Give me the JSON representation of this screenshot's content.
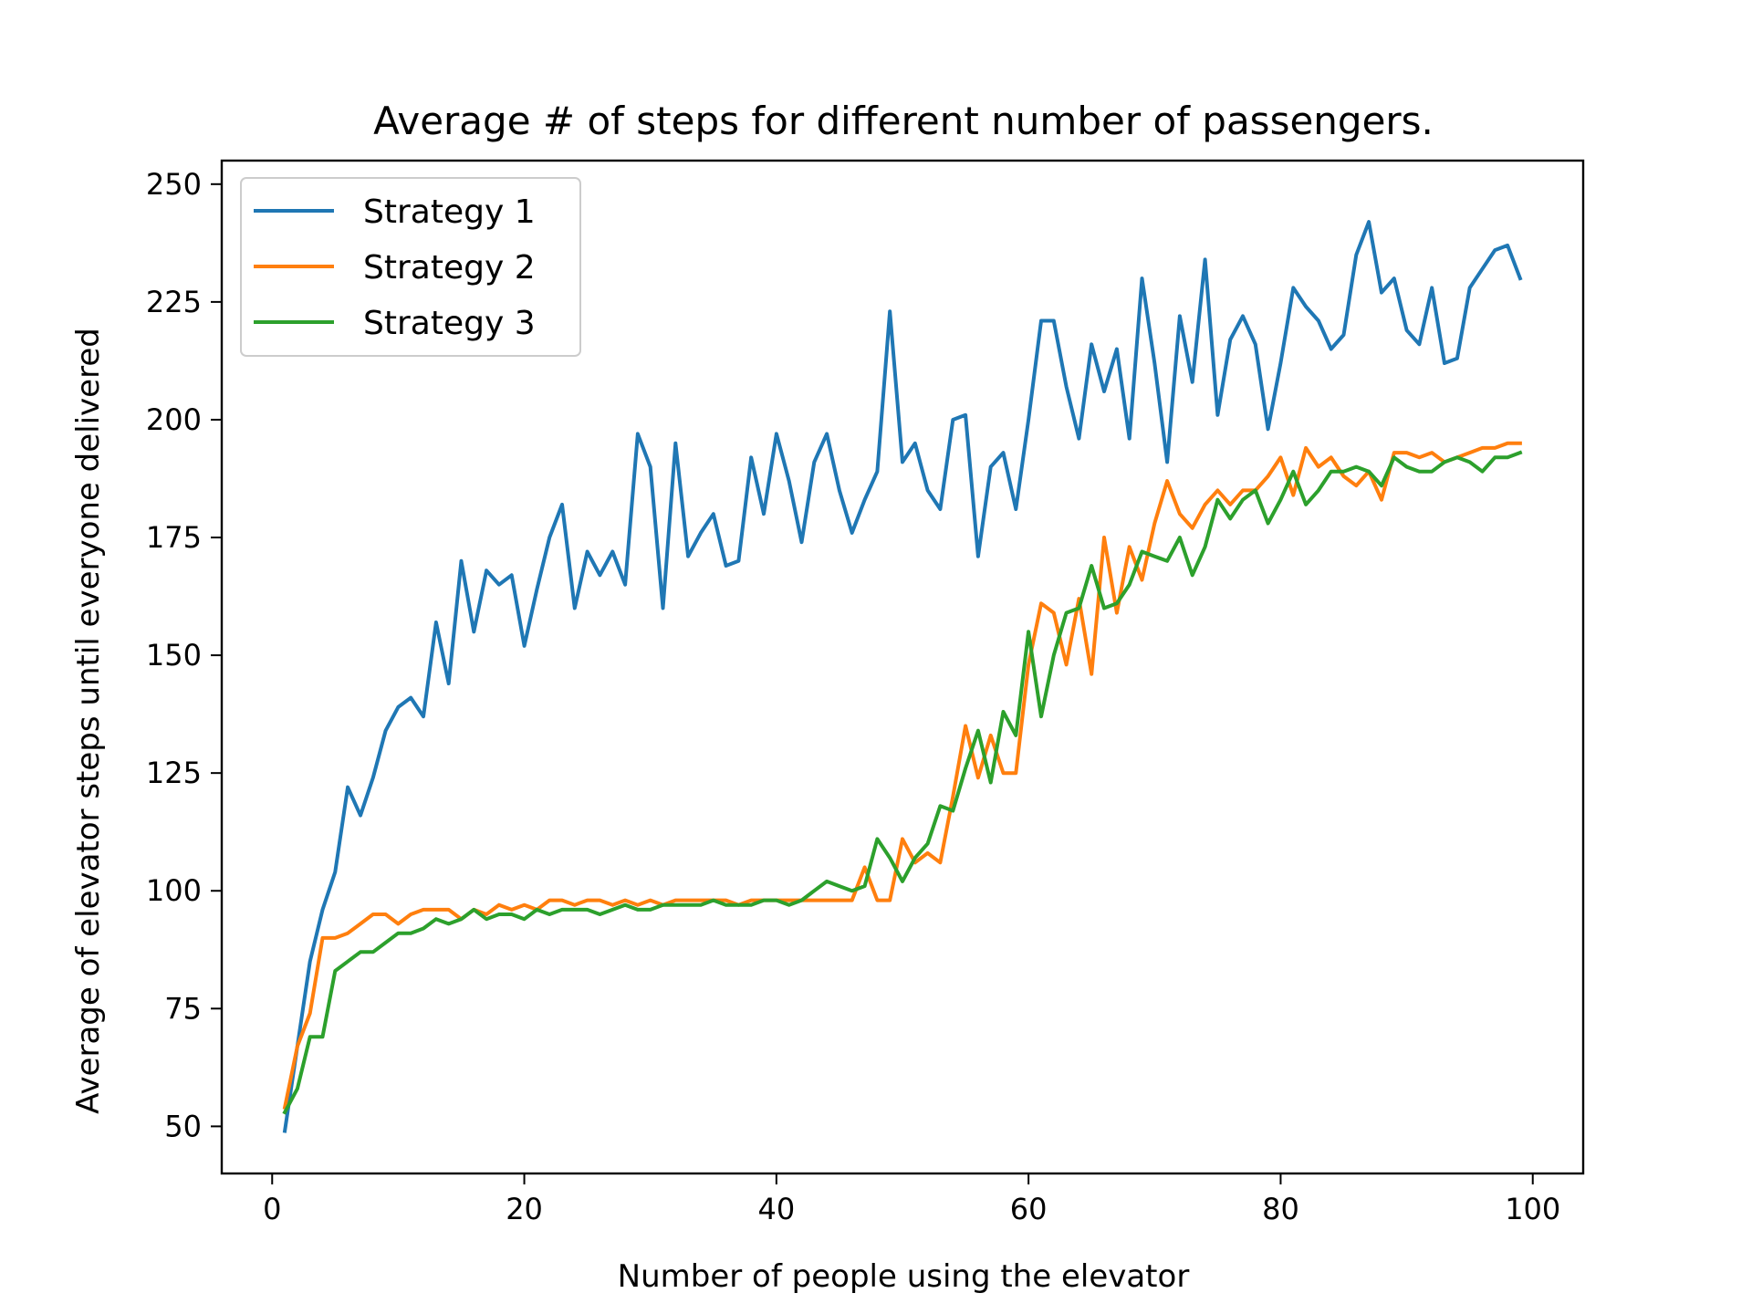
{
  "chart_data": {
    "type": "line",
    "title": "Average # of steps for different number of passengers.",
    "xlabel": "Number of people using the elevator",
    "ylabel": "Average of elevator steps until everyone delivered",
    "xlim": [
      -4,
      104
    ],
    "ylim": [
      40,
      255
    ],
    "xticks": [
      0,
      20,
      40,
      60,
      80,
      100
    ],
    "yticks": [
      50,
      75,
      100,
      125,
      150,
      175,
      200,
      225,
      250
    ],
    "grid": false,
    "legend": "top-left",
    "x": [
      1,
      2,
      3,
      4,
      5,
      6,
      7,
      8,
      9,
      10,
      11,
      12,
      13,
      14,
      15,
      16,
      17,
      18,
      19,
      20,
      21,
      22,
      23,
      24,
      25,
      26,
      27,
      28,
      29,
      30,
      31,
      32,
      33,
      34,
      35,
      36,
      37,
      38,
      39,
      40,
      41,
      42,
      43,
      44,
      45,
      46,
      47,
      48,
      49,
      50,
      51,
      52,
      53,
      54,
      55,
      56,
      57,
      58,
      59,
      60,
      61,
      62,
      63,
      64,
      65,
      66,
      67,
      68,
      69,
      70,
      71,
      72,
      73,
      74,
      75,
      76,
      77,
      78,
      79,
      80,
      81,
      82,
      83,
      84,
      85,
      86,
      87,
      88,
      89,
      90,
      91,
      92,
      93,
      94,
      95,
      96,
      97,
      98,
      99
    ],
    "series": [
      {
        "name": "Strategy 1",
        "color": "#1f77b4",
        "values": [
          49,
          67,
          85,
          96,
          104,
          122,
          116,
          124,
          134,
          139,
          141,
          137,
          157,
          144,
          170,
          155,
          168,
          165,
          167,
          152,
          164,
          175,
          182,
          160,
          172,
          167,
          172,
          165,
          197,
          190,
          160,
          195,
          171,
          176,
          180,
          169,
          170,
          192,
          180,
          197,
          187,
          174,
          191,
          197,
          185,
          176,
          183,
          189,
          223,
          191,
          195,
          185,
          181,
          200,
          201,
          171,
          190,
          193,
          181,
          200,
          221,
          221,
          207,
          196,
          216,
          206,
          215,
          196,
          230,
          212,
          191,
          222,
          208,
          234,
          201,
          217,
          222,
          216,
          198,
          212,
          228,
          224,
          221,
          215,
          218,
          235,
          242,
          227,
          230,
          219,
          216,
          228,
          212,
          213,
          228,
          232,
          236,
          237,
          230
        ]
      },
      {
        "name": "Strategy 2",
        "color": "#ff7f0e",
        "values": [
          54,
          67,
          74,
          90,
          90,
          91,
          93,
          95,
          95,
          93,
          95,
          96,
          96,
          96,
          94,
          96,
          95,
          97,
          96,
          97,
          96,
          98,
          98,
          97,
          98,
          98,
          97,
          98,
          97,
          98,
          97,
          98,
          98,
          98,
          98,
          98,
          97,
          98,
          98,
          98,
          98,
          98,
          98,
          98,
          98,
          98,
          105,
          98,
          98,
          111,
          106,
          108,
          106,
          120,
          135,
          124,
          133,
          125,
          125,
          148,
          161,
          159,
          148,
          162,
          146,
          175,
          159,
          173,
          166,
          178,
          187,
          180,
          177,
          182,
          185,
          182,
          185,
          185,
          188,
          192,
          184,
          194,
          190,
          192,
          188,
          186,
          189,
          183,
          193,
          193,
          192,
          193,
          191,
          192,
          193,
          194,
          194,
          195,
          195
        ]
      },
      {
        "name": "Strategy 3",
        "color": "#2ca02c",
        "values": [
          53,
          58,
          69,
          69,
          83,
          85,
          87,
          87,
          89,
          91,
          91,
          92,
          94,
          93,
          94,
          96,
          94,
          95,
          95,
          94,
          96,
          95,
          96,
          96,
          96,
          95,
          96,
          97,
          96,
          96,
          97,
          97,
          97,
          97,
          98,
          97,
          97,
          97,
          98,
          98,
          97,
          98,
          100,
          102,
          101,
          100,
          101,
          111,
          107,
          102,
          107,
          110,
          118,
          117,
          126,
          134,
          123,
          138,
          133,
          155,
          137,
          150,
          159,
          160,
          169,
          160,
          161,
          165,
          172,
          171,
          170,
          175,
          167,
          173,
          183,
          179,
          183,
          185,
          178,
          183,
          189,
          182,
          185,
          189,
          189,
          190,
          189,
          186,
          192,
          190,
          189,
          189,
          191,
          192,
          191,
          189,
          192,
          192,
          193
        ]
      }
    ]
  }
}
